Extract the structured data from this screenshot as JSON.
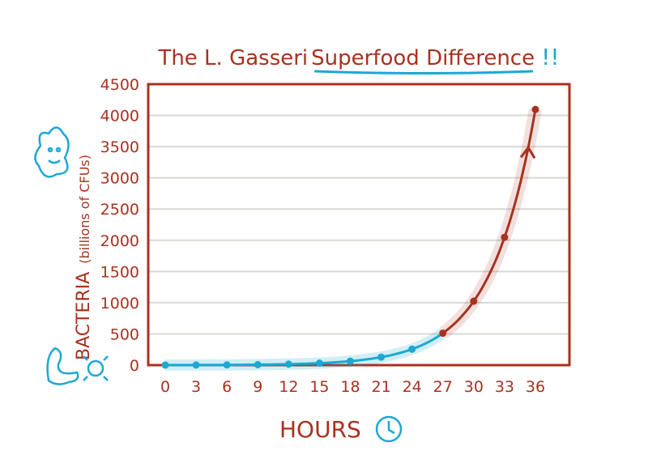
{
  "chart_data": {
    "type": "line",
    "title_parts": [
      "The L. Gasseri ",
      "Superfood Difference",
      "!!"
    ],
    "title": "The L. Gasseri Superfood Difference!!",
    "xlabel": "HOURS",
    "ylabel_main": "BACTERIA",
    "ylabel_sub": "(billions of CFUs)",
    "ylabel": "BACTERIA (billions of CFUs)",
    "x": [
      0,
      3,
      6,
      9,
      12,
      15,
      18,
      21,
      24,
      27,
      30,
      33,
      36
    ],
    "values": [
      1,
      2,
      4,
      8,
      16,
      32,
      64,
      128,
      256,
      512,
      1024,
      2048,
      4096
    ],
    "highlight_from_x": 27,
    "xticks": [
      "0",
      "3",
      "6",
      "9",
      "12",
      "15",
      "18",
      "21",
      "24",
      "27",
      "30",
      "33",
      "36"
    ],
    "yticks": [
      "0",
      "500",
      "1000",
      "1500",
      "2000",
      "2500",
      "3000",
      "3500",
      "4000",
      "4500"
    ],
    "ylim": [
      0,
      4500
    ],
    "xlim": [
      0,
      36
    ],
    "grid": true,
    "legend": "none",
    "colors": {
      "early": "#1ba8d4",
      "late": "#a8321f",
      "axis": "#a8321f",
      "grid": "#d8d8d4"
    }
  }
}
